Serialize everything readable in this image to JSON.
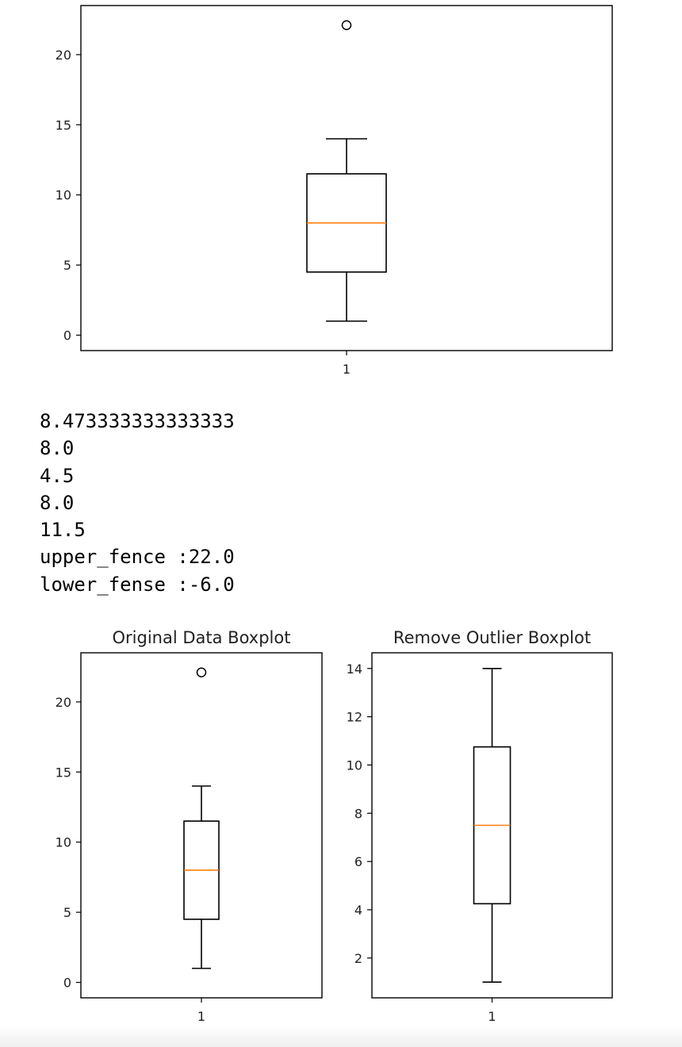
{
  "chart_data": [
    {
      "type": "boxplot",
      "title": "",
      "xlabel": "",
      "ylabel": "",
      "x_ticks": [
        "1"
      ],
      "y_ticks": [
        0,
        5,
        10,
        15,
        20
      ],
      "ylim": [
        -1.1,
        23.5
      ],
      "box": {
        "whisker_low": 1,
        "q1": 4.5,
        "median": 8,
        "q3": 11.5,
        "whisker_high": 14,
        "outliers": [
          22.1
        ]
      },
      "colors": {
        "median": "#ff7f0e",
        "box": "#000000"
      }
    },
    {
      "type": "boxplot",
      "title": "Original Data Boxplot",
      "xlabel": "",
      "ylabel": "",
      "x_ticks": [
        "1"
      ],
      "y_ticks": [
        0,
        5,
        10,
        15,
        20
      ],
      "ylim": [
        -1.1,
        23.5
      ],
      "box": {
        "whisker_low": 1,
        "q1": 4.5,
        "median": 8,
        "q3": 11.5,
        "whisker_high": 14,
        "outliers": [
          22.1
        ]
      },
      "colors": {
        "median": "#ff7f0e",
        "box": "#000000"
      }
    },
    {
      "type": "boxplot",
      "title": "Remove Outlier Boxplot",
      "xlabel": "",
      "ylabel": "",
      "x_ticks": [
        "1"
      ],
      "y_ticks": [
        2,
        4,
        6,
        8,
        10,
        12,
        14
      ],
      "ylim": [
        0.35,
        14.65
      ],
      "box": {
        "whisker_low": 1,
        "q1": 4.25,
        "median": 7.5,
        "q3": 10.75,
        "whisker_high": 14,
        "outliers": []
      },
      "colors": {
        "median": "#ff7f0e",
        "box": "#000000"
      }
    }
  ],
  "output": {
    "lines": [
      "8.473333333333333",
      "8.0",
      "4.5",
      "8.0",
      "11.5",
      "upper_fence :22.0",
      "lower_fense :-6.0"
    ]
  }
}
